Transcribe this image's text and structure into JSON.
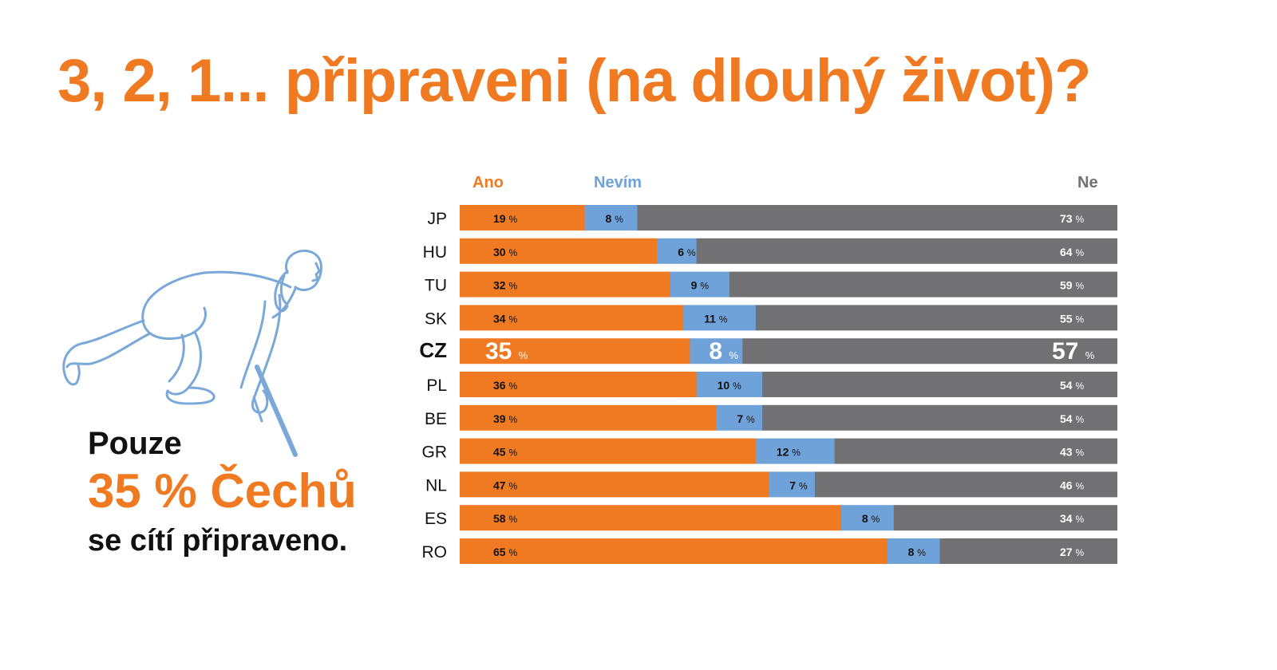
{
  "title": "3, 2, 1... připraveni (na dlouhý život)?",
  "caption": {
    "line1": "Pouze",
    "line2": "35 % Čechů",
    "line3": "se cítí připraveno."
  },
  "colors": {
    "accent": "#f07a22",
    "ano": "#f07a22",
    "nevim": "#6fa2d8",
    "ne": "#717174",
    "text": "#111111"
  },
  "icons": {
    "illustration": "sprinter-start-icon"
  },
  "chart_data": {
    "type": "bar",
    "orientation": "horizontal",
    "stacked": true,
    "unit": "%",
    "categories": [
      "JP",
      "HU",
      "TU",
      "SK",
      "CZ",
      "PL",
      "BE",
      "GR",
      "NL",
      "ES",
      "RO"
    ],
    "highlight_category": "CZ",
    "series": [
      {
        "name": "Ano",
        "color": "#f07a22",
        "values": [
          19,
          30,
          32,
          34,
          35,
          36,
          39,
          45,
          47,
          58,
          65
        ]
      },
      {
        "name": "Nevím",
        "color": "#6fa2d8",
        "values": [
          8,
          6,
          9,
          11,
          8,
          10,
          7,
          12,
          7,
          8,
          8
        ]
      },
      {
        "name": "Ne",
        "color": "#717174",
        "values": [
          73,
          64,
          59,
          55,
          57,
          54,
          54,
          43,
          46,
          34,
          27
        ]
      }
    ],
    "legend_position": "top",
    "xlim": [
      0,
      100
    ],
    "grid": false
  }
}
